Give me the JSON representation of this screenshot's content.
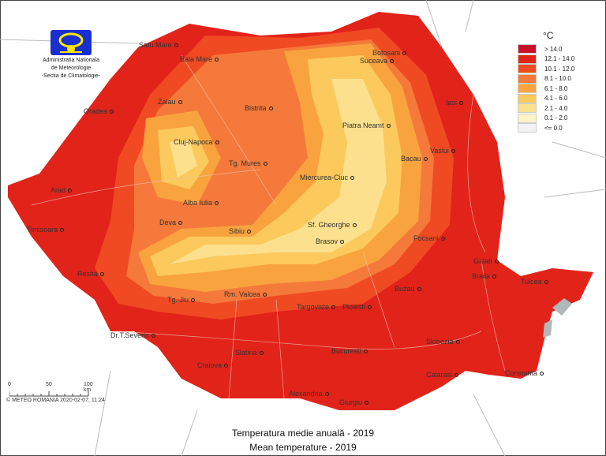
{
  "logo": {
    "line1": "Administratia Nationala",
    "line2": "de Meteorologie",
    "line3": "-Sectia de Climatologie-"
  },
  "legend": {
    "unit": "°C",
    "items": [
      {
        "label": "> 14.0",
        "color": "#c8102e"
      },
      {
        "label": "12.1 - 14.0",
        "color": "#e2231a"
      },
      {
        "label": "10.1 - 12.0",
        "color": "#f04a23"
      },
      {
        "label": "8.1 - 10.0",
        "color": "#f5793a"
      },
      {
        "label": "6.1 - 8.0",
        "color": "#f9a33f"
      },
      {
        "label": "4.1 - 6.0",
        "color": "#fbc95c"
      },
      {
        "label": "2.1 - 4.0",
        "color": "#fde08d"
      },
      {
        "label": "0.1 - 2.0",
        "color": "#fff4c4"
      },
      {
        "label": "<= 0.0",
        "color": "#f2f2f5"
      }
    ]
  },
  "cities": [
    "Satu Mare",
    "Baia Mare",
    "Botosani",
    "Suceava",
    "Oradea",
    "Zalau",
    "Bistrita",
    "Iasi",
    "Piatra Neamt",
    "Cluj-Napoca",
    "Vaslui",
    "Tg. Mures",
    "Bacau",
    "Miercurea-Ciuc",
    "Arad",
    "Alba Iulia",
    "Deva",
    "Sibiu",
    "Sf. Gheorghe",
    "Timisoara",
    "Brasov",
    "Focsani",
    "Resita",
    "Galati",
    "Braila",
    "Tulcea",
    "Tg. Jiu",
    "Rm. Valcea",
    "Targoviste",
    "Ploiesti",
    "Buzau",
    "Dr.T.Severin",
    "Slatina",
    "Craiova",
    "Bucuresti",
    "Slobozia",
    "Calarasi",
    "Constanta",
    "Alexandria",
    "Giurgiu"
  ],
  "scale": {
    "ticks": [
      "0",
      "50",
      "100 km"
    ],
    "credit": "© METEO ROMANIA 2020-02-07, 11:24"
  },
  "captions": {
    "ro": "Temperatura medie anuală - 2019",
    "en": "Mean temperature -  2019"
  }
}
